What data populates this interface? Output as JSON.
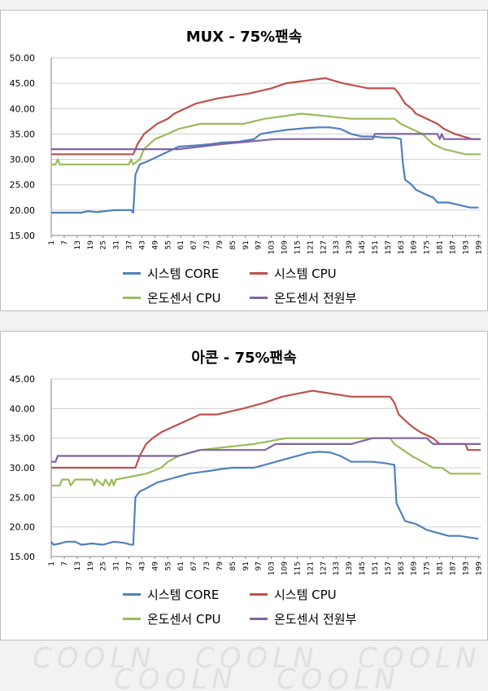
{
  "chart_data": [
    {
      "type": "line",
      "title": "MUX - 75%팬속",
      "xlabel": "",
      "ylabel": "",
      "ylim": [
        15,
        50
      ],
      "yticks": [
        "15.00",
        "20.00",
        "25.00",
        "30.00",
        "35.00",
        "40.00",
        "45.00",
        "50.00"
      ],
      "xticks": [
        "1",
        "7",
        "13",
        "19",
        "25",
        "31",
        "37",
        "43",
        "49",
        "55",
        "61",
        "67",
        "73",
        "79",
        "85",
        "91",
        "97",
        "103",
        "109",
        "115",
        "121",
        "127",
        "133",
        "139",
        "145",
        "151",
        "157",
        "163",
        "169",
        "175",
        "181",
        "187",
        "193",
        "199"
      ],
      "grid": true,
      "legend_position": "bottom",
      "series": [
        {
          "name": "시스템 CORE",
          "color": "#4f81bd",
          "points": [
            [
              1,
              19.5
            ],
            [
              10,
              19.5
            ],
            [
              15,
              19.5
            ],
            [
              18,
              19.8
            ],
            [
              22,
              19.6
            ],
            [
              30,
              20.0
            ],
            [
              38,
              20.0
            ],
            [
              39,
              19.5
            ],
            [
              40,
              27
            ],
            [
              42,
              29
            ],
            [
              45,
              29.5
            ],
            [
              50,
              30.5
            ],
            [
              55,
              31.5
            ],
            [
              60,
              32.5
            ],
            [
              70,
              32.8
            ],
            [
              75,
              33.0
            ],
            [
              80,
              33.3
            ],
            [
              88,
              33.5
            ],
            [
              95,
              34
            ],
            [
              98,
              35
            ],
            [
              105,
              35.5
            ],
            [
              110,
              35.8
            ],
            [
              115,
              36
            ],
            [
              120,
              36.2
            ],
            [
              125,
              36.3
            ],
            [
              130,
              36.3
            ],
            [
              135,
              36
            ],
            [
              140,
              35
            ],
            [
              145,
              34.5
            ],
            [
              150,
              34.5
            ],
            [
              155,
              34.3
            ],
            [
              160,
              34.3
            ],
            [
              163,
              34
            ],
            [
              164,
              29
            ],
            [
              165,
              26
            ],
            [
              168,
              25
            ],
            [
              170,
              24
            ],
            [
              175,
              23
            ],
            [
              178,
              22.5
            ],
            [
              180,
              21.5
            ],
            [
              185,
              21.5
            ],
            [
              190,
              21
            ],
            [
              195,
              20.5
            ],
            [
              199,
              20.5
            ]
          ]
        },
        {
          "name": "시스템 CPU",
          "color": "#c0504d",
          "points": [
            [
              1,
              31
            ],
            [
              39,
              31
            ],
            [
              41,
              33
            ],
            [
              44,
              35
            ],
            [
              47,
              36
            ],
            [
              50,
              37
            ],
            [
              55,
              38
            ],
            [
              58,
              39
            ],
            [
              63,
              40
            ],
            [
              68,
              41
            ],
            [
              78,
              42
            ],
            [
              93,
              43
            ],
            [
              103,
              44
            ],
            [
              110,
              45
            ],
            [
              128,
              46
            ],
            [
              136,
              45
            ],
            [
              148,
              44
            ],
            [
              160,
              44
            ],
            [
              162,
              43
            ],
            [
              165,
              41
            ],
            [
              168,
              40
            ],
            [
              170,
              39
            ],
            [
              175,
              38
            ],
            [
              180,
              37
            ],
            [
              183,
              36
            ],
            [
              188,
              35
            ],
            [
              196,
              34
            ],
            [
              200,
              34
            ]
          ]
        },
        {
          "name": "온도센서 CPU",
          "color": "#9bbb59",
          "points": [
            [
              1,
              29
            ],
            [
              3,
              29
            ],
            [
              4,
              30
            ],
            [
              5,
              29
            ],
            [
              37,
              29
            ],
            [
              38,
              30
            ],
            [
              39,
              29
            ],
            [
              42,
              30
            ],
            [
              44,
              32
            ],
            [
              49,
              34
            ],
            [
              55,
              35
            ],
            [
              60,
              36
            ],
            [
              70,
              37
            ],
            [
              90,
              37
            ],
            [
              100,
              38
            ],
            [
              117,
              39
            ],
            [
              140,
              38
            ],
            [
              155,
              38
            ],
            [
              160,
              38
            ],
            [
              163,
              37
            ],
            [
              168,
              36
            ],
            [
              173,
              35
            ],
            [
              178,
              33
            ],
            [
              183,
              32
            ],
            [
              193,
              31
            ],
            [
              200,
              31
            ]
          ]
        },
        {
          "name": "온도센서 전원부",
          "color": "#8064a2",
          "points": [
            [
              1,
              32
            ],
            [
              45,
              32
            ],
            [
              60,
              32
            ],
            [
              80,
              33
            ],
            [
              105,
              34
            ],
            [
              150,
              34
            ],
            [
              151,
              35
            ],
            [
              180,
              35
            ],
            [
              181,
              34
            ],
            [
              182,
              35
            ],
            [
              183,
              34
            ],
            [
              190,
              34
            ],
            [
              200,
              34
            ]
          ]
        }
      ]
    },
    {
      "type": "line",
      "title": "아콘 - 75%팬속",
      "xlabel": "",
      "ylabel": "",
      "ylim": [
        15,
        45
      ],
      "yticks": [
        "15.00",
        "20.00",
        "25.00",
        "30.00",
        "35.00",
        "40.00",
        "45.00"
      ],
      "xticks": [
        "1",
        "7",
        "13",
        "19",
        "25",
        "31",
        "37",
        "43",
        "49",
        "55",
        "61",
        "67",
        "73",
        "79",
        "85",
        "91",
        "97",
        "103",
        "109",
        "115",
        "121",
        "127",
        "133",
        "139",
        "145",
        "151",
        "157",
        "163",
        "169",
        "175",
        "181",
        "187",
        "193",
        "199"
      ],
      "grid": true,
      "legend_position": "bottom",
      "series": [
        {
          "name": "시스템 CORE",
          "color": "#4f81bd",
          "points": [
            [
              1,
              17.5
            ],
            [
              2,
              17
            ],
            [
              5,
              17.2
            ],
            [
              8,
              17.5
            ],
            [
              12,
              17.5
            ],
            [
              15,
              17
            ],
            [
              20,
              17.2
            ],
            [
              25,
              17
            ],
            [
              30,
              17.5
            ],
            [
              35,
              17.3
            ],
            [
              38,
              17
            ],
            [
              39,
              17
            ],
            [
              40,
              25
            ],
            [
              42,
              26
            ],
            [
              45,
              26.5
            ],
            [
              50,
              27.5
            ],
            [
              55,
              28
            ],
            [
              60,
              28.5
            ],
            [
              65,
              29
            ],
            [
              75,
              29.5
            ],
            [
              80,
              29.8
            ],
            [
              85,
              30
            ],
            [
              95,
              30
            ],
            [
              100,
              30.5
            ],
            [
              105,
              31
            ],
            [
              110,
              31.5
            ],
            [
              115,
              32
            ],
            [
              120,
              32.5
            ],
            [
              125,
              32.7
            ],
            [
              130,
              32.6
            ],
            [
              135,
              32
            ],
            [
              140,
              31
            ],
            [
              145,
              31
            ],
            [
              150,
              31
            ],
            [
              155,
              30.8
            ],
            [
              160,
              30.5
            ],
            [
              161,
              24
            ],
            [
              163,
              22.5
            ],
            [
              165,
              21
            ],
            [
              170,
              20.5
            ],
            [
              175,
              19.5
            ],
            [
              180,
              19
            ],
            [
              185,
              18.5
            ],
            [
              190,
              18.5
            ],
            [
              195,
              18.2
            ],
            [
              199,
              18
            ]
          ]
        },
        {
          "name": "시스템 CPU",
          "color": "#c0504d",
          "points": [
            [
              1,
              30
            ],
            [
              40,
              30
            ],
            [
              42,
              32
            ],
            [
              45,
              34
            ],
            [
              48,
              35
            ],
            [
              52,
              36
            ],
            [
              58,
              37
            ],
            [
              64,
              38
            ],
            [
              70,
              39
            ],
            [
              78,
              39
            ],
            [
              90,
              40
            ],
            [
              100,
              41
            ],
            [
              108,
              42
            ],
            [
              122,
              43
            ],
            [
              140,
              42
            ],
            [
              158,
              42
            ],
            [
              160,
              41
            ],
            [
              162,
              39
            ],
            [
              165,
              38
            ],
            [
              168,
              37
            ],
            [
              172,
              36
            ],
            [
              178,
              35
            ],
            [
              181,
              34
            ],
            [
              193,
              34
            ],
            [
              194,
              33
            ],
            [
              200,
              33
            ]
          ]
        },
        {
          "name": "온도센서 CPU",
          "color": "#9bbb59",
          "points": [
            [
              1,
              27
            ],
            [
              5,
              27
            ],
            [
              6,
              28
            ],
            [
              9,
              28
            ],
            [
              10,
              27
            ],
            [
              12,
              28
            ],
            [
              20,
              28
            ],
            [
              21,
              27
            ],
            [
              22,
              28
            ],
            [
              25,
              27
            ],
            [
              26,
              28
            ],
            [
              28,
              27
            ],
            [
              29,
              28
            ],
            [
              30,
              27
            ],
            [
              31,
              28
            ],
            [
              45,
              29
            ],
            [
              52,
              30
            ],
            [
              55,
              31
            ],
            [
              60,
              32
            ],
            [
              70,
              33
            ],
            [
              95,
              34
            ],
            [
              110,
              35
            ],
            [
              135,
              35
            ],
            [
              158,
              35
            ],
            [
              160,
              34
            ],
            [
              164,
              33
            ],
            [
              168,
              32
            ],
            [
              173,
              31
            ],
            [
              178,
              30
            ],
            [
              182,
              30
            ],
            [
              186,
              29
            ],
            [
              200,
              29
            ]
          ]
        },
        {
          "name": "온도센서 전원부",
          "color": "#8064a2",
          "points": [
            [
              1,
              31
            ],
            [
              3,
              31
            ],
            [
              4,
              32
            ],
            [
              50,
              32
            ],
            [
              60,
              32
            ],
            [
              70,
              33
            ],
            [
              100,
              33
            ],
            [
              105,
              34
            ],
            [
              140,
              34
            ],
            [
              150,
              35
            ],
            [
              175,
              35
            ],
            [
              178,
              34
            ],
            [
              200,
              34
            ]
          ]
        }
      ]
    }
  ],
  "legend": [
    {
      "label": "시스템 CORE",
      "color": "#4f81bd"
    },
    {
      "label": "시스템 CPU",
      "color": "#c0504d"
    },
    {
      "label": "온도센서 CPU",
      "color": "#9bbb59"
    },
    {
      "label": "온도센서 전원부",
      "color": "#8064a2"
    }
  ],
  "watermark": "COOLN"
}
